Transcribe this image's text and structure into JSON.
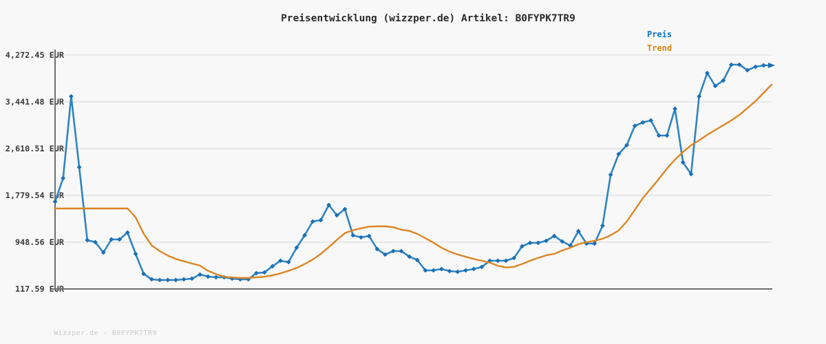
{
  "title": "Preisentwicklung (wizzper.de) Artikel: B0FYPK7TR9",
  "footer": "Wizzper.de - B0FYPK7TR9",
  "legend": {
    "items": [
      {
        "label": "Preis",
        "color": "#1173c4"
      },
      {
        "label": "Trend",
        "color": "#d9830f"
      }
    ]
  },
  "colors": {
    "background": "#f8f8f8",
    "grid": "#e2e2e2",
    "axis": "#6e6e6e",
    "tick_label": "#3a3a3a",
    "title": "#2b2b2b",
    "watermark": "#c9c9c9"
  },
  "chart_data": {
    "type": "line",
    "title": "Preisentwicklung (wizzper.de) Artikel: B0FYPK7TR9",
    "currency": "EUR",
    "grid": "horizontal",
    "legend_position": "top-right",
    "x_axis": {
      "tick_labels": "none"
    },
    "ylim": [
      117.59,
      4272.45
    ],
    "y_axis": {
      "tick_labels": [
        "4,272.45 EUR",
        "3,441.48 EUR",
        "2,610.51 EUR",
        "1,779.54 EUR",
        "948.56 EUR",
        "117.59 EUR"
      ],
      "tick_values": [
        4272.45,
        3441.48,
        2610.51,
        1779.54,
        948.56,
        117.59
      ]
    },
    "series": [
      {
        "name": "Preis",
        "color": "#2e84c2",
        "marker_color": "#1a6fb5",
        "marker": "diamond",
        "end_marker": "arrow",
        "values": [
          1670,
          2085,
          3539,
          2280,
          985,
          948,
          765,
          997,
          997,
          1120,
          741,
          386,
          289,
          276,
          276,
          276,
          289,
          301,
          374,
          338,
          325,
          325,
          301,
          289,
          289,
          399,
          411,
          521,
          619,
          594,
          851,
          1071,
          1315,
          1340,
          1608,
          1425,
          1535,
          1071,
          1034,
          1059,
          826,
          729,
          790,
          790,
          692,
          631,
          448,
          448,
          472,
          435,
          423,
          448,
          472,
          509,
          619,
          619,
          619,
          668,
          875,
          936,
          936,
          973,
          1059,
          961,
          888,
          1144,
          924,
          924,
          1242,
          2146,
          2513,
          2672,
          3014,
          3075,
          3112,
          2843,
          2843,
          3319,
          2366,
          2158,
          3539,
          3954,
          3722,
          3820,
          4101,
          4101,
          4003,
          4064,
          4089,
          4089
        ]
      },
      {
        "name": "Trend",
        "color": "#dd8421",
        "marker": "none",
        "values": [
          1547,
          1547,
          1547,
          1547,
          1547,
          1547,
          1547,
          1547,
          1547,
          1547,
          1390,
          1100,
          890,
          790,
          710,
          650,
          610,
          570,
          533,
          440,
          380,
          335,
          322,
          313,
          313,
          325,
          335,
          360,
          395,
          440,
          490,
          560,
          640,
          740,
          860,
          990,
          1110,
          1160,
          1195,
          1225,
          1230,
          1230,
          1215,
          1170,
          1150,
          1095,
          1020,
          940,
          850,
          780,
          730,
          690,
          650,
          619,
          585,
          530,
          500,
          510,
          560,
          619,
          670,
          715,
          741,
          802,
          851,
          912,
          948,
          973,
          1010,
          1071,
          1156,
          1315,
          1523,
          1731,
          1902,
          2073,
          2256,
          2415,
          2550,
          2672,
          2757,
          2855,
          2940,
          3026,
          3111,
          3209,
          3331,
          3453,
          3600,
          3747
        ]
      }
    ]
  }
}
